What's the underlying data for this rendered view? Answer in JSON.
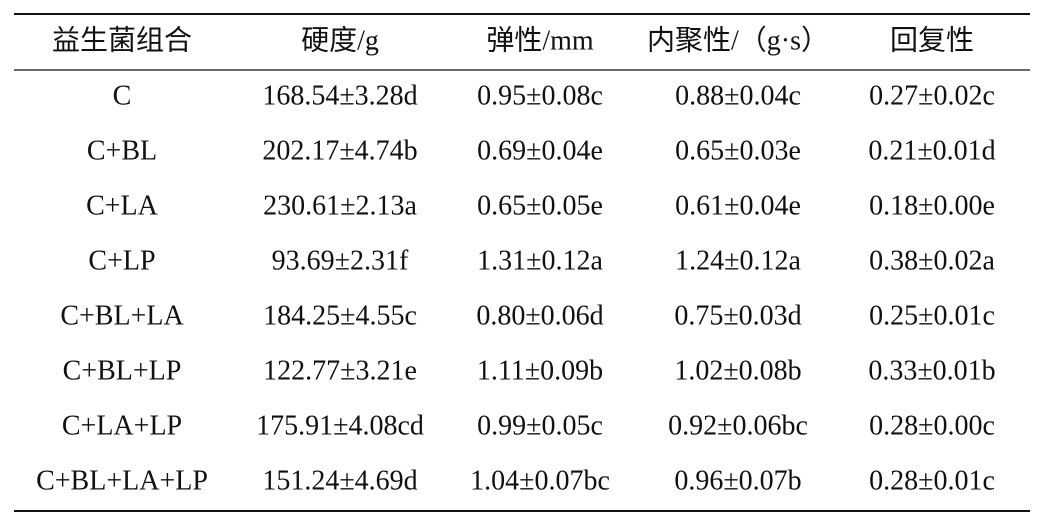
{
  "table": {
    "header": [
      "益生菌组合",
      "硬度/g",
      "弹性/mm",
      "内聚性/（g·s）",
      "回复性"
    ],
    "rows": [
      [
        "C",
        "168.54±3.28d",
        "0.95±0.08c",
        "0.88±0.04c",
        "0.27±0.02c"
      ],
      [
        "C+BL",
        "202.17±4.74b",
        "0.69±0.04e",
        "0.65±0.03e",
        "0.21±0.01d"
      ],
      [
        "C+LA",
        "230.61±2.13a",
        "0.65±0.05e",
        "0.61±0.04e",
        "0.18±0.00e"
      ],
      [
        "C+LP",
        "93.69±2.31f",
        "1.31±0.12a",
        "1.24±0.12a",
        "0.38±0.02a"
      ],
      [
        "C+BL+LA",
        "184.25±4.55c",
        "0.80±0.06d",
        "0.75±0.03d",
        "0.25±0.01c"
      ],
      [
        "C+BL+LP",
        "122.77±3.21e",
        "1.11±0.09b",
        "1.02±0.08b",
        "0.33±0.01b"
      ],
      [
        "C+LA+LP",
        "175.91±4.08cd",
        "0.99±0.05c",
        "0.92±0.06bc",
        "0.28±0.00c"
      ],
      [
        "C+BL+LA+LP",
        "151.24±4.69d",
        "1.04±0.07bc",
        "0.96±0.07b",
        "0.28±0.01c"
      ]
    ]
  }
}
